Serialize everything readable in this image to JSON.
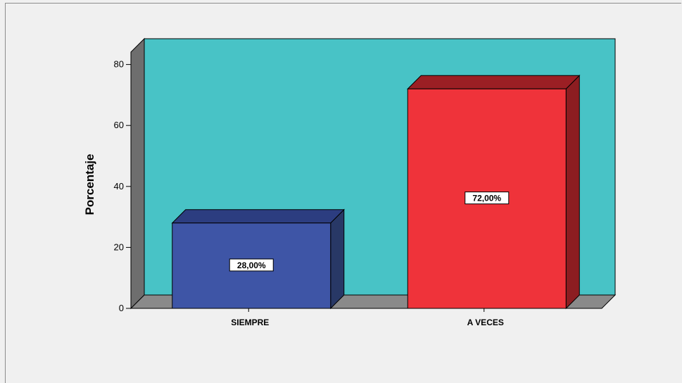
{
  "chart_data": {
    "type": "bar",
    "categories": [
      "SIEMPRE",
      "A VECES"
    ],
    "values": [
      28,
      72
    ],
    "data_labels": [
      "28,00%",
      "72,00%"
    ],
    "title": "",
    "xlabel": "",
    "ylabel": "Porcentaje",
    "ylim": [
      0,
      87
    ],
    "yticks": [
      0,
      20,
      40,
      60,
      80
    ],
    "grid": false,
    "style": "3d",
    "colors": {
      "wall": "#48c3c6",
      "floor": "#8a8a8a",
      "side_wall": "#6e6e6e",
      "bars": [
        {
          "front": "#3e55a6",
          "top": "#2c3d80",
          "side": "#283866"
        },
        {
          "front": "#ef333a",
          "top": "#9b1f24",
          "side": "#8c1d21"
        }
      ]
    }
  }
}
